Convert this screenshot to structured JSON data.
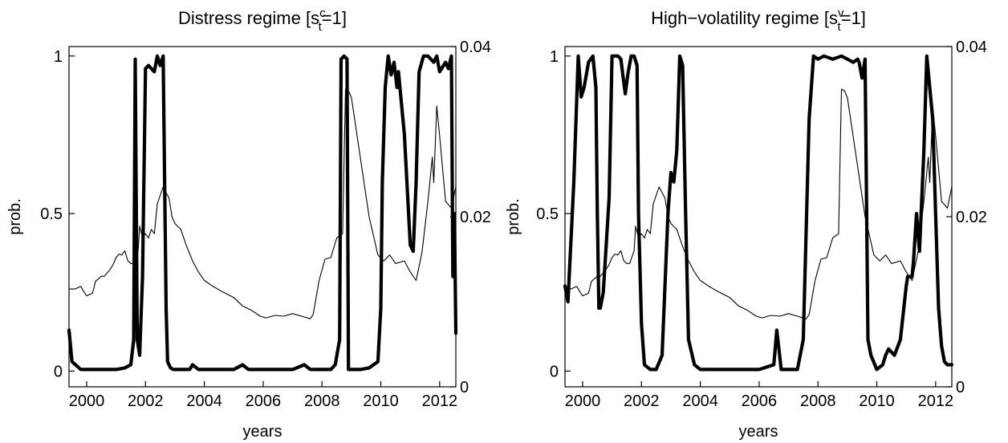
{
  "chart_data": [
    {
      "type": "line",
      "title": "Distress regime [s",
      "title_sup": "c",
      "title_sub": "t",
      "title_tail": "=1]",
      "xlabel": "years",
      "ylabel": "prob.",
      "xlim": [
        1999.4,
        2012.55
      ],
      "ylim": [
        -0.05,
        1.03
      ],
      "ylim_right": [
        0,
        0.04
      ],
      "xticks": [
        2000,
        2002,
        2004,
        2006,
        2008,
        2010,
        2012
      ],
      "yticks": [
        0,
        0.5,
        1
      ],
      "yticklabels": [
        "0",
        "0.5",
        "1"
      ],
      "yticks_right": [
        0,
        0.02,
        0.04
      ],
      "yticklabels_right": [
        "0",
        "0.02",
        "0.04"
      ],
      "grid": false,
      "series": [
        {
          "axis": "left",
          "style": "thick",
          "x": [
            1999.4,
            1999.5,
            1999.8,
            2000.0,
            2000.5,
            2001.0,
            2001.3,
            2001.5,
            2001.6,
            2001.65,
            2001.72,
            2001.8,
            2001.9,
            2002.0,
            2002.1,
            2002.3,
            2002.4,
            2002.5,
            2002.6,
            2002.7,
            2002.75,
            2002.85,
            2002.95,
            2003.1,
            2003.5,
            2003.6,
            2003.8,
            2004.5,
            2005.0,
            2005.3,
            2005.5,
            2006.0,
            2007.0,
            2007.4,
            2007.6,
            2008.0,
            2008.3,
            2008.45,
            2008.6,
            2008.65,
            2008.75,
            2008.85,
            2008.9,
            2009.0,
            2009.3,
            2009.6,
            2009.9,
            2010.0,
            2010.05,
            2010.15,
            2010.25,
            2010.35,
            2010.45,
            2010.55,
            2010.6,
            2010.8,
            2011.0,
            2011.1,
            2011.2,
            2011.3,
            2011.45,
            2011.6,
            2011.8,
            2011.9,
            2012.0,
            2012.2,
            2012.3,
            2012.4,
            2012.45,
            2012.5,
            2012.55
          ],
          "y": [
            0.13,
            0.03,
            0.005,
            0.005,
            0.005,
            0.005,
            0.01,
            0.02,
            0.1,
            0.99,
            0.1,
            0.05,
            0.3,
            0.96,
            0.97,
            0.95,
            1.0,
            0.97,
            1.0,
            0.2,
            0.03,
            0.01,
            0.005,
            0.005,
            0.005,
            0.02,
            0.005,
            0.005,
            0.005,
            0.02,
            0.005,
            0.005,
            0.005,
            0.02,
            0.005,
            0.005,
            0.005,
            0.02,
            0.1,
            0.99,
            1.0,
            0.99,
            0.005,
            0.005,
            0.005,
            0.01,
            0.03,
            0.2,
            0.6,
            0.9,
            1.0,
            0.94,
            0.98,
            0.9,
            0.95,
            0.75,
            0.4,
            0.38,
            0.6,
            0.95,
            1.0,
            1.0,
            0.98,
            1.0,
            0.95,
            0.98,
            0.96,
            1.0,
            0.3,
            0.5,
            0.12
          ]
        },
        {
          "axis": "right",
          "style": "thin",
          "x": [
            1999.4,
            1999.6,
            1999.8,
            1999.9,
            2000.0,
            2000.2,
            2000.3,
            2000.5,
            2000.6,
            2000.8,
            2000.9,
            2001.0,
            2001.1,
            2001.2,
            2001.3,
            2001.4,
            2001.5,
            2001.6,
            2001.7,
            2001.75,
            2001.8,
            2001.9,
            2002.0,
            2002.1,
            2002.2,
            2002.3,
            2002.4,
            2002.5,
            2002.6,
            2002.7,
            2002.8,
            2002.9,
            2003.0,
            2003.2,
            2003.4,
            2003.6,
            2003.8,
            2004.0,
            2004.3,
            2004.6,
            2005.0,
            2005.3,
            2005.6,
            2005.9,
            2006.1,
            2006.4,
            2006.7,
            2007.0,
            2007.3,
            2007.6,
            2007.7,
            2007.9,
            2008.1,
            2008.3,
            2008.5,
            2008.7,
            2008.8,
            2008.9,
            2009.0,
            2009.3,
            2009.6,
            2009.9,
            2010.1,
            2010.3,
            2010.5,
            2010.8,
            2011.0,
            2011.2,
            2011.4,
            2011.6,
            2011.75,
            2011.8,
            2011.9,
            2012.0,
            2012.2,
            2012.4,
            2012.55
          ],
          "y": [
            0.0115,
            0.0115,
            0.0118,
            0.0112,
            0.0107,
            0.011,
            0.0124,
            0.013,
            0.013,
            0.0138,
            0.0144,
            0.0152,
            0.0156,
            0.0155,
            0.016,
            0.0148,
            0.0145,
            0.0145,
            0.0155,
            0.016,
            0.0189,
            0.0175,
            0.018,
            0.0175,
            0.0185,
            0.018,
            0.0215,
            0.0225,
            0.0235,
            0.0228,
            0.0222,
            0.02,
            0.0192,
            0.0185,
            0.0165,
            0.0148,
            0.0135,
            0.0125,
            0.0118,
            0.0112,
            0.0105,
            0.0095,
            0.009,
            0.0083,
            0.0081,
            0.0084,
            0.0083,
            0.0086,
            0.0083,
            0.008,
            0.0085,
            0.0125,
            0.015,
            0.0152,
            0.0175,
            0.018,
            0.035,
            0.0348,
            0.034,
            0.027,
            0.02,
            0.0155,
            0.0148,
            0.0155,
            0.0145,
            0.0148,
            0.0135,
            0.0125,
            0.0158,
            0.0218,
            0.027,
            0.024,
            0.033,
            0.0295,
            0.0218,
            0.021,
            0.0235
          ]
        }
      ]
    },
    {
      "type": "line",
      "title": "High−volatility regime [s",
      "title_sup": "v",
      "title_sub": "t",
      "title_tail": "=1]",
      "xlabel": "years",
      "ylabel": "prob.",
      "xlim": [
        1999.4,
        2012.55
      ],
      "ylim": [
        -0.05,
        1.03
      ],
      "ylim_right": [
        0,
        0.04
      ],
      "xticks": [
        2000,
        2002,
        2004,
        2006,
        2008,
        2010,
        2012
      ],
      "yticks": [
        0,
        0.5,
        1
      ],
      "yticklabels": [
        "0",
        "0.5",
        "1"
      ],
      "yticks_right": [
        0,
        0.02,
        0.04
      ],
      "yticklabels_right": [
        "0",
        "0.02",
        "0.04"
      ],
      "grid": false,
      "series": [
        {
          "axis": "left",
          "style": "thick",
          "x": [
            1999.4,
            1999.5,
            1999.7,
            1999.85,
            1999.95,
            2000.05,
            2000.2,
            2000.35,
            2000.45,
            2000.5,
            2000.55,
            2000.6,
            2000.7,
            2000.9,
            2001.0,
            2001.1,
            2001.2,
            2001.3,
            2001.45,
            2001.55,
            2001.65,
            2001.75,
            2001.85,
            2001.9,
            2002.0,
            2002.1,
            2002.3,
            2002.5,
            2002.7,
            2002.9,
            2003.0,
            2003.1,
            2003.2,
            2003.3,
            2003.4,
            2003.5,
            2003.6,
            2003.8,
            2004.0,
            2004.3,
            2004.6,
            2004.8,
            2005.0,
            2005.5,
            2006.0,
            2006.5,
            2006.6,
            2006.75,
            2006.85,
            2006.95,
            2007.3,
            2007.5,
            2007.7,
            2007.85,
            2008.0,
            2008.2,
            2008.5,
            2008.8,
            2009.0,
            2009.2,
            2009.35,
            2009.4,
            2009.5,
            2009.6,
            2009.7,
            2009.8,
            2010.0,
            2010.2,
            2010.3,
            2010.4,
            2010.6,
            2010.8,
            2011.0,
            2011.05,
            2011.2,
            2011.25,
            2011.35,
            2011.45,
            2011.6,
            2011.7,
            2011.8,
            2011.9,
            2012.0,
            2012.1,
            2012.2,
            2012.3,
            2012.4,
            2012.55
          ],
          "y": [
            0.27,
            0.22,
            0.6,
            1.0,
            0.87,
            0.9,
            0.98,
            1.0,
            0.9,
            0.5,
            0.2,
            0.2,
            0.25,
            0.55,
            1.0,
            1.0,
            1.0,
            0.99,
            0.88,
            0.95,
            1.0,
            1.0,
            0.97,
            0.5,
            0.15,
            0.02,
            0.005,
            0.005,
            0.05,
            0.5,
            0.63,
            0.6,
            0.7,
            1.0,
            0.97,
            0.5,
            0.1,
            0.02,
            0.005,
            0.005,
            0.005,
            0.005,
            0.005,
            0.005,
            0.005,
            0.02,
            0.13,
            0.005,
            0.005,
            0.005,
            0.005,
            0.1,
            0.8,
            1.0,
            0.99,
            1.0,
            0.99,
            1.0,
            0.99,
            0.98,
            0.99,
            0.98,
            0.93,
            0.99,
            0.1,
            0.05,
            0.005,
            0.02,
            0.05,
            0.07,
            0.05,
            0.1,
            0.27,
            0.3,
            0.3,
            0.35,
            0.5,
            0.38,
            0.7,
            1.0,
            0.9,
            0.8,
            0.5,
            0.2,
            0.08,
            0.03,
            0.02,
            0.02
          ]
        },
        {
          "axis": "right",
          "style": "thin",
          "x": [
            1999.4,
            1999.6,
            1999.8,
            1999.9,
            2000.0,
            2000.2,
            2000.3,
            2000.5,
            2000.6,
            2000.8,
            2000.9,
            2001.0,
            2001.1,
            2001.2,
            2001.3,
            2001.4,
            2001.5,
            2001.6,
            2001.7,
            2001.75,
            2001.8,
            2001.9,
            2002.0,
            2002.1,
            2002.2,
            2002.3,
            2002.4,
            2002.5,
            2002.6,
            2002.7,
            2002.8,
            2002.9,
            2003.0,
            2003.2,
            2003.4,
            2003.6,
            2003.8,
            2004.0,
            2004.3,
            2004.6,
            2005.0,
            2005.3,
            2005.6,
            2005.9,
            2006.1,
            2006.4,
            2006.7,
            2007.0,
            2007.3,
            2007.6,
            2007.7,
            2007.9,
            2008.1,
            2008.3,
            2008.5,
            2008.7,
            2008.8,
            2008.9,
            2009.0,
            2009.3,
            2009.6,
            2009.9,
            2010.1,
            2010.3,
            2010.5,
            2010.8,
            2011.0,
            2011.2,
            2011.4,
            2011.6,
            2011.75,
            2011.8,
            2011.9,
            2012.0,
            2012.2,
            2012.4,
            2012.55
          ],
          "y": [
            0.0115,
            0.0115,
            0.0118,
            0.0112,
            0.0107,
            0.011,
            0.0124,
            0.013,
            0.013,
            0.0138,
            0.0144,
            0.0152,
            0.0156,
            0.0155,
            0.016,
            0.0148,
            0.0145,
            0.0145,
            0.0155,
            0.016,
            0.0189,
            0.0175,
            0.018,
            0.0175,
            0.0185,
            0.018,
            0.0215,
            0.0225,
            0.0235,
            0.0228,
            0.0222,
            0.02,
            0.0192,
            0.0185,
            0.0165,
            0.0148,
            0.0135,
            0.0125,
            0.0118,
            0.0112,
            0.0105,
            0.0095,
            0.009,
            0.0083,
            0.0081,
            0.0084,
            0.0083,
            0.0086,
            0.0083,
            0.008,
            0.0085,
            0.0125,
            0.015,
            0.0152,
            0.0175,
            0.018,
            0.035,
            0.0348,
            0.034,
            0.027,
            0.02,
            0.0155,
            0.0148,
            0.0155,
            0.0145,
            0.0148,
            0.0135,
            0.0125,
            0.0158,
            0.0218,
            0.027,
            0.024,
            0.033,
            0.0295,
            0.0218,
            0.021,
            0.0235
          ]
        }
      ]
    }
  ]
}
